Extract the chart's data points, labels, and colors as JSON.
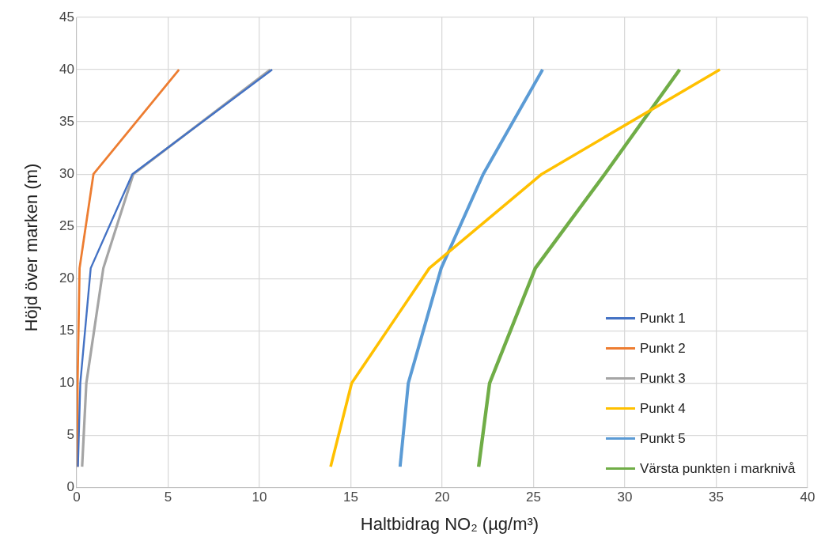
{
  "chart_data": {
    "type": "line",
    "xlabel": "Haltbidrag NO₂ (µg/m³)",
    "ylabel": "Höjd över marken (m)",
    "xlim": [
      0,
      40
    ],
    "xticks": [
      0,
      5,
      10,
      15,
      20,
      25,
      30,
      35,
      40
    ],
    "ylim": [
      0,
      45
    ],
    "yticks": [
      0,
      5,
      10,
      15,
      20,
      25,
      30,
      35,
      40,
      45
    ],
    "grid": true,
    "legend": "bottom right",
    "marker": "none",
    "line_style": "solid",
    "series": [
      {
        "name": "Punkt 1",
        "color": "#4472c4",
        "x": [
          0.07,
          0.2,
          0.77,
          3.05,
          10.7
        ],
        "values": [
          2,
          10,
          21,
          30,
          40
        ]
      },
      {
        "name": "Punkt 2",
        "color": "#ed7d31",
        "x": [
          0.05,
          0.05,
          0.16,
          0.92,
          5.6
        ],
        "values": [
          2,
          10,
          21,
          30,
          40
        ]
      },
      {
        "name": "Punkt 3",
        "color": "#a5a5a5",
        "x": [
          0.3,
          0.53,
          1.46,
          3.1,
          10.6
        ],
        "values": [
          2,
          10,
          21,
          30,
          40
        ]
      },
      {
        "name": "Punkt 4",
        "color": "#ffc000",
        "x": [
          13.9,
          15.05,
          19.3,
          25.45,
          35.2
        ],
        "values": [
          2,
          10,
          21,
          30,
          40
        ]
      },
      {
        "name": "Punkt 5",
        "color": "#5b9bd5",
        "x": [
          17.7,
          18.15,
          19.95,
          22.25,
          25.5
        ],
        "values": [
          2,
          10,
          21,
          30,
          40
        ]
      },
      {
        "name": "Värsta punkten i marknivå",
        "color": "#70ad47",
        "x": [
          22.0,
          22.6,
          25.1,
          28.9,
          33.0
        ],
        "values": [
          2,
          10,
          21,
          30,
          40
        ]
      }
    ]
  }
}
